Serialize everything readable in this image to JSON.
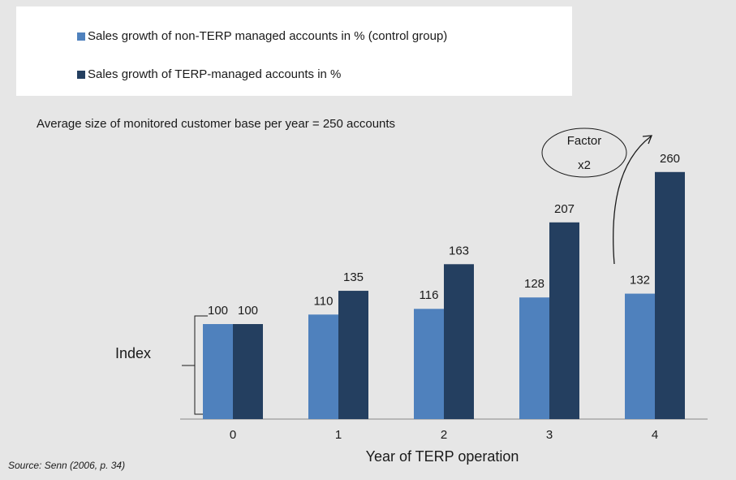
{
  "chart_data": {
    "type": "bar",
    "note": "Average size of monitored customer base per year = 250 accounts",
    "annotation": [
      "Factor",
      "x2"
    ],
    "ylabel": "Index",
    "xlabel": "Year of TERP operation",
    "source": "Source: Senn (2006, p. 34)",
    "categories": [
      "0",
      "1",
      "2",
      "3",
      "4"
    ],
    "series": [
      {
        "name": "Sales growth of non-TERP managed accounts in % (control group)",
        "color": "#4f81bd",
        "values": [
          100,
          110,
          116,
          128,
          132
        ]
      },
      {
        "name": "Sales growth of TERP-managed accounts in %",
        "color": "#243f60",
        "values": [
          100,
          135,
          163,
          207,
          260
        ]
      }
    ],
    "ylim": [
      0,
      300
    ]
  }
}
